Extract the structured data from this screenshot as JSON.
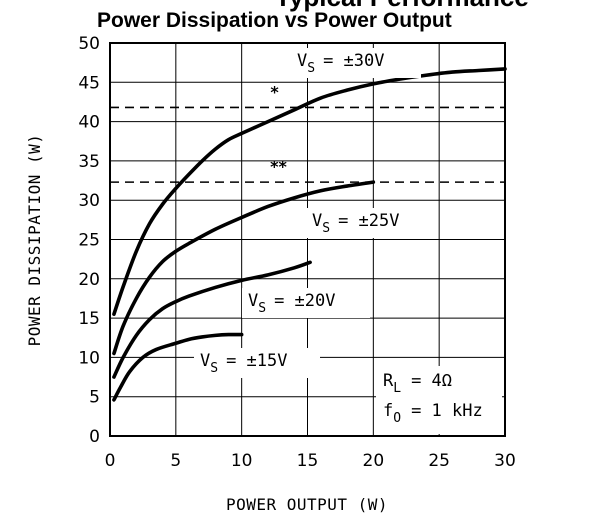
{
  "header_cut_text": "Typical Performance",
  "chart_data": {
    "type": "line",
    "title": "Power Dissipation vs Power Output",
    "xlabel": "POWER OUTPUT (W)",
    "ylabel": "POWER DISSIPATION (W)",
    "xlim": [
      0,
      30
    ],
    "ylim": [
      0,
      50
    ],
    "xticks": [
      0,
      5,
      10,
      15,
      20,
      25,
      30
    ],
    "yticks": [
      0,
      5,
      10,
      15,
      20,
      25,
      30,
      35,
      40,
      45,
      50
    ],
    "grid": true,
    "series": [
      {
        "name": "VS = ±30V",
        "x": [
          0.3,
          1,
          2,
          3,
          4,
          5,
          6,
          7,
          8,
          9,
          10,
          12,
          14,
          16,
          18,
          20,
          22,
          24,
          26,
          28,
          30
        ],
        "y": [
          15.5,
          19,
          23.5,
          27,
          29.5,
          31.5,
          33.3,
          35,
          36.5,
          37.7,
          38.5,
          40,
          41.5,
          43,
          44,
          44.8,
          45.4,
          45.9,
          46.3,
          46.5,
          46.7
        ]
      },
      {
        "name": "VS = ±25V",
        "x": [
          0.3,
          1,
          2,
          3,
          4,
          5,
          6,
          8,
          10,
          12,
          14,
          16,
          18,
          20
        ],
        "y": [
          10.5,
          14,
          17.5,
          20.2,
          22.2,
          23.5,
          24.5,
          26.3,
          27.8,
          29.2,
          30.3,
          31.2,
          31.8,
          32.3
        ]
      },
      {
        "name": "VS = ±20V",
        "x": [
          0.3,
          1,
          2,
          3,
          4,
          5,
          6,
          8,
          10,
          12,
          14,
          15.2
        ],
        "y": [
          7.5,
          10,
          12.8,
          14.8,
          16.2,
          17.1,
          17.8,
          18.9,
          19.8,
          20.5,
          21.4,
          22.1
        ]
      },
      {
        "name": "VS = ±15V",
        "x": [
          0.3,
          0.8,
          1.5,
          2.5,
          3.5,
          5,
          6,
          7,
          8,
          9,
          10
        ],
        "y": [
          4.6,
          6.2,
          8.2,
          10,
          11,
          11.8,
          12.3,
          12.6,
          12.8,
          12.9,
          12.9
        ]
      }
    ],
    "reference_lines": [
      {
        "y": 41.8,
        "style": "dashed",
        "marker": "*"
      },
      {
        "y": 32.3,
        "style": "dashed",
        "marker": "**"
      }
    ],
    "curve_labels": [
      {
        "vs": "V",
        "sub": "S",
        "value": "= ±30V"
      },
      {
        "vs": "V",
        "sub": "S",
        "value": "= ±25V"
      },
      {
        "vs": "V",
        "sub": "S",
        "value": "= ±20V"
      },
      {
        "vs": "V",
        "sub": "S",
        "value": "= ±15V"
      }
    ],
    "conditions": [
      {
        "sym": "R",
        "sub": "L",
        "value": "= 4Ω"
      },
      {
        "sym": "f",
        "sub": "O",
        "value": "= 1 kHz"
      }
    ]
  }
}
